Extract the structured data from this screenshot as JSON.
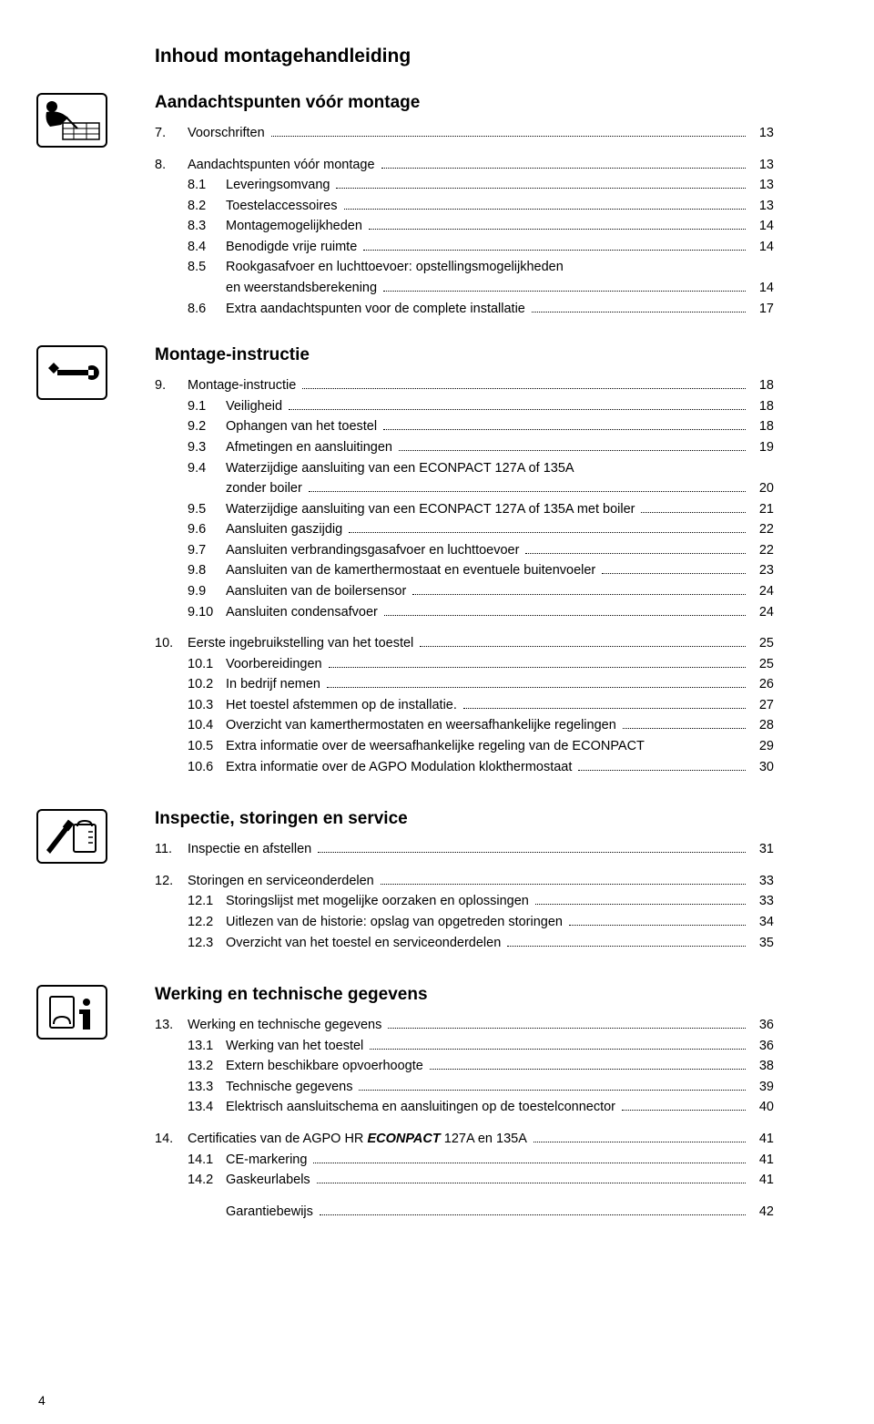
{
  "title": "Inhoud montagehandleiding",
  "page_number": "4",
  "sections": [
    {
      "heading": "Aandachtspunten vóór montage",
      "icon": "person-drawing",
      "groups": [
        {
          "rows": [
            {
              "num": "7.",
              "label": "Voorschriften",
              "page": "13"
            }
          ]
        },
        {
          "rows": [
            {
              "num": "8.",
              "label": "Aandachtspunten vóór montage",
              "page": "13"
            },
            {
              "sub": "8.1",
              "label": "Leveringsomvang",
              "page": "13"
            },
            {
              "sub": "8.2",
              "label": "Toestelaccessoires",
              "page": "13"
            },
            {
              "sub": "8.3",
              "label": "Montagemogelijkheden",
              "page": "14"
            },
            {
              "sub": "8.4",
              "label": "Benodigde vrije ruimte",
              "page": "14"
            },
            {
              "sub": "8.5",
              "label": "Rookgasafvoer en luchttoevoer: opstellingsmogelijkheden",
              "nopage": true
            },
            {
              "sub": "",
              "label": "en weerstandsberekening",
              "page": "14"
            },
            {
              "sub": "8.6",
              "label": "Extra aandachtspunten voor de complete installatie",
              "page": "17"
            }
          ]
        }
      ]
    },
    {
      "heading": "Montage-instructie",
      "icon": "wrench",
      "groups": [
        {
          "rows": [
            {
              "num": "9.",
              "label": "Montage-instructie",
              "page": "18"
            },
            {
              "sub": "9.1",
              "label": "Veiligheid",
              "page": "18"
            },
            {
              "sub": "9.2",
              "label": "Ophangen van het toestel",
              "page": "18"
            },
            {
              "sub": "9.3",
              "label": "Afmetingen en aansluitingen",
              "page": "19"
            },
            {
              "sub": "9.4",
              "label": "Waterzijdige aansluiting van een ECONPACT 127A of 135A",
              "nopage": true
            },
            {
              "sub": "",
              "label": "zonder boiler",
              "page": "20"
            },
            {
              "sub": "9.5",
              "label": "Waterzijdige aansluiting van een ECONPACT 127A of 135A met boiler",
              "page": "21",
              "shortdots": true
            },
            {
              "sub": "9.6",
              "label": "Aansluiten gaszijdig",
              "page": "22"
            },
            {
              "sub": "9.7",
              "label": "Aansluiten verbrandingsgasafvoer en luchttoevoer",
              "page": "22"
            },
            {
              "sub": "9.8",
              "label": "Aansluiten van de kamerthermostaat en eventuele buitenvoeler",
              "page": "23"
            },
            {
              "sub": "9.9",
              "label": "Aansluiten van de boilersensor",
              "page": "24"
            },
            {
              "sub": "9.10",
              "label": "Aansluiten condensafvoer",
              "page": "24"
            }
          ]
        },
        {
          "rows": [
            {
              "num": "10.",
              "label": "Eerste ingebruikstelling van het toestel",
              "page": "25"
            },
            {
              "sub": "10.1",
              "label": "Voorbereidingen",
              "page": "25"
            },
            {
              "sub": "10.2",
              "label": "In bedrijf nemen",
              "page": "26"
            },
            {
              "sub": "10.3",
              "label": "Het toestel afstemmen op de installatie.",
              "page": "27"
            },
            {
              "sub": "10.4",
              "label": "Overzicht van kamerthermostaten en weersafhankelijke regelingen",
              "page": "28"
            },
            {
              "sub": "10.5",
              "label": "Extra informatie over de weersafhankelijke regeling van de ECONPACT",
              "page": "29",
              "spacedots": true
            },
            {
              "sub": "10.6",
              "label": "Extra informatie over de AGPO Modulation klokthermostaat",
              "page": "30"
            }
          ]
        }
      ]
    },
    {
      "heading": "Inspectie, storingen en service",
      "icon": "screwdriver-gauge",
      "groups": [
        {
          "rows": [
            {
              "num": "11.",
              "label": "Inspectie en afstellen",
              "page": "31"
            }
          ]
        },
        {
          "rows": [
            {
              "num": "12.",
              "label": "Storingen en serviceonderdelen",
              "page": "33"
            },
            {
              "sub": "12.1",
              "label": "Storingslijst met mogelijke oorzaken en oplossingen",
              "page": "33"
            },
            {
              "sub": "12.2",
              "label": "Uitlezen van de historie: opslag van opgetreden storingen",
              "page": "34"
            },
            {
              "sub": "12.3",
              "label": "Overzicht van het toestel en serviceonderdelen",
              "page": "35"
            }
          ]
        }
      ]
    },
    {
      "heading": "Werking en technische gegevens",
      "icon": "info",
      "groups": [
        {
          "rows": [
            {
              "num": "13.",
              "label": "Werking en technische gegevens",
              "page": "36"
            },
            {
              "sub": "13.1",
              "label": "Werking van het toestel",
              "page": "36"
            },
            {
              "sub": "13.2",
              "label": "Extern beschikbare opvoerhoogte",
              "page": "38"
            },
            {
              "sub": "13.3",
              "label": "Technische gegevens",
              "page": "39"
            },
            {
              "sub": "13.4",
              "label": "Elektrisch aansluitschema en aansluitingen op de toestelconnector",
              "page": "40"
            }
          ]
        },
        {
          "rows": [
            {
              "num": "14.",
              "label_html": "Certificaties van de AGPO HR <em class='italic'>ECONPACT</em> 127A en 135A",
              "page": "41"
            },
            {
              "sub": "14.1",
              "label": "CE-markering",
              "page": "41"
            },
            {
              "sub": "14.2",
              "label": "Gaskeurlabels",
              "page": "41"
            }
          ]
        },
        {
          "rows": [
            {
              "sub": "",
              "label": "Garantiebewijs",
              "page": "42"
            }
          ]
        }
      ]
    }
  ]
}
